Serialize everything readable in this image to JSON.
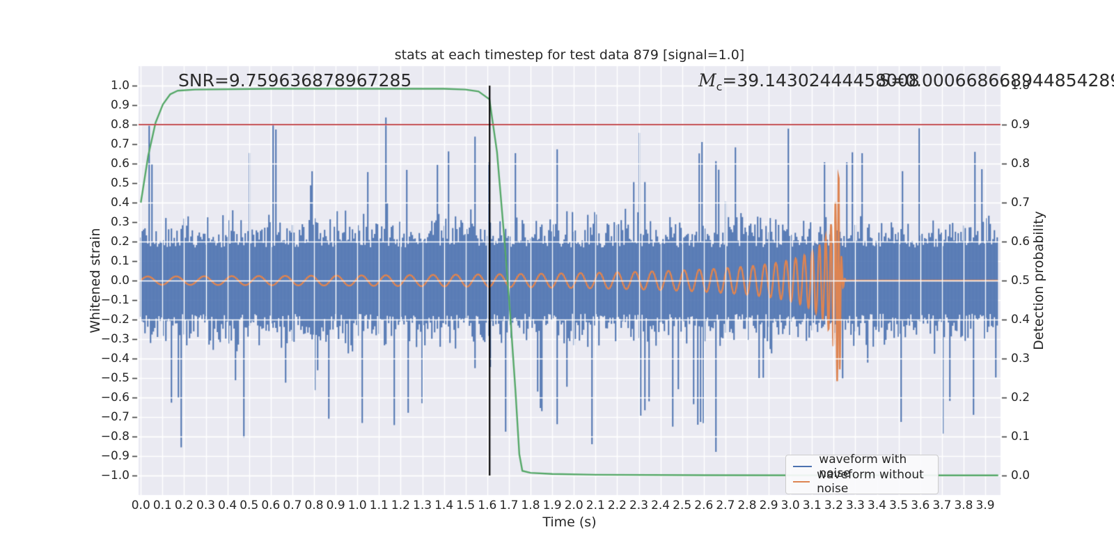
{
  "chart_data": {
    "type": "line",
    "title": "stats at each timestep for test data 879 [signal=1.0]",
    "xlabel": "Time (s)",
    "ylabel_left": "Whitened strain",
    "ylabel_right": "Detection probability",
    "x_ticks": [
      "0.0",
      "0.1",
      "0.2",
      "0.3",
      "0.4",
      "0.5",
      "0.6",
      "0.7",
      "0.8",
      "0.9",
      "1.0",
      "1.1",
      "1.2",
      "1.3",
      "1.4",
      "1.5",
      "1.6",
      "1.7",
      "1.8",
      "1.9",
      "2.0",
      "2.1",
      "2.2",
      "2.3",
      "2.4",
      "2.5",
      "2.6",
      "2.7",
      "2.8",
      "2.9",
      "3.0",
      "3.1",
      "3.2",
      "3.3",
      "3.4",
      "3.5",
      "3.6",
      "3.7",
      "3.8",
      "3.9"
    ],
    "x_tick_values": [
      0.0,
      0.1,
      0.2,
      0.3,
      0.4,
      0.5,
      0.6,
      0.7,
      0.8,
      0.9,
      1.0,
      1.1,
      1.2,
      1.3,
      1.4,
      1.5,
      1.6,
      1.7,
      1.8,
      1.9,
      2.0,
      2.1,
      2.2,
      2.3,
      2.4,
      2.5,
      2.6,
      2.7,
      2.8,
      2.9,
      3.0,
      3.1,
      3.2,
      3.3,
      3.4,
      3.5,
      3.6,
      3.7,
      3.8,
      3.9
    ],
    "y_left_ticks": [
      "1.0",
      "0.9",
      "0.8",
      "0.7",
      "0.6",
      "0.5",
      "0.4",
      "0.3",
      "0.2",
      "0.1",
      "0.0",
      "−0.1",
      "−0.2",
      "−0.3",
      "−0.4",
      "−0.5",
      "−0.6",
      "−0.7",
      "−0.8",
      "−0.9",
      "−1.0"
    ],
    "y_left_tick_values": [
      1.0,
      0.9,
      0.8,
      0.7,
      0.6,
      0.5,
      0.4,
      0.3,
      0.2,
      0.1,
      0.0,
      -0.1,
      -0.2,
      -0.3,
      -0.4,
      -0.5,
      -0.6,
      -0.7,
      -0.8,
      -0.9,
      -1.0
    ],
    "y_right_ticks": [
      "1.0",
      "0.9",
      "0.8",
      "0.7",
      "0.6",
      "0.5",
      "0.4",
      "0.3",
      "0.2",
      "0.1",
      "0.0"
    ],
    "y_right_tick_values": [
      1.0,
      0.9,
      0.8,
      0.7,
      0.6,
      0.5,
      0.4,
      0.3,
      0.2,
      0.1,
      0.0
    ],
    "xlim": [
      -0.0105,
      3.9705
    ],
    "ylim_left": [
      -1.1,
      1.1
    ],
    "ylim_right": [
      -0.05,
      1.05
    ],
    "grid": true,
    "annotations": {
      "snr": "SNR=9.759636878967285",
      "mc_symbol": "M",
      "mc_sub": "c",
      "mc_value": "=39.14302444458008",
      "s_symbol": "S",
      "s_value": "=0.000668668944854289"
    },
    "legend": {
      "position": "lower right",
      "items": [
        {
          "label": "waveform with noise",
          "color": "#4C72B0"
        },
        {
          "label": "waveform without noise",
          "color": "#DD8452"
        }
      ]
    },
    "threshold_line": {
      "axis": "right",
      "value": 0.9,
      "color": "#C44E52"
    },
    "marker_vline": {
      "time": 1.611,
      "span_strain": [
        -1.0,
        1.0
      ],
      "color": "#000000"
    },
    "detection_probability_series": {
      "color": "#55A868",
      "points": [
        [
          0.0,
          0.7
        ],
        [
          0.034,
          0.82
        ],
        [
          0.068,
          0.905
        ],
        [
          0.102,
          0.952
        ],
        [
          0.136,
          0.978
        ],
        [
          0.17,
          0.987
        ],
        [
          0.25,
          0.99
        ],
        [
          0.6,
          0.992
        ],
        [
          1.0,
          0.992
        ],
        [
          1.4,
          0.992
        ],
        [
          1.5,
          0.99
        ],
        [
          1.56,
          0.985
        ],
        [
          1.61,
          0.965
        ],
        [
          1.645,
          0.83
        ],
        [
          1.68,
          0.6
        ],
        [
          1.705,
          0.42
        ],
        [
          1.73,
          0.22
        ],
        [
          1.748,
          0.055
        ],
        [
          1.762,
          0.012
        ],
        [
          1.8,
          0.007
        ],
        [
          1.9,
          0.004
        ],
        [
          2.1,
          0.002
        ],
        [
          2.6,
          0.001
        ],
        [
          3.2,
          0.0005
        ],
        [
          3.96,
          0.0005
        ]
      ]
    },
    "noise_waveform": {
      "color": "#4C72B0",
      "time_range": [
        0.0,
        3.96
      ],
      "body_band_strain": 0.22,
      "typical_peak_strain": 0.45,
      "max_peak_strain": 1.0,
      "seed": 879
    },
    "clean_waveform": {
      "color": "#DD8452",
      "time_range": [
        0.0,
        3.96
      ],
      "base_amplitude": 0.021,
      "peak_amplitude": 0.57,
      "merger_time": 3.228,
      "start_frequency_hz": 7.5,
      "post_merger_value": 0.0
    },
    "style": {
      "plot_background": "#EAEAF2",
      "grid_color": "#FFFFFF",
      "text_color": "#262626",
      "tick_mark_color": "#3a3a3a"
    }
  }
}
